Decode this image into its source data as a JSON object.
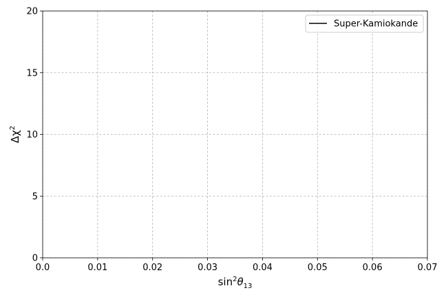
{
  "chart_data": {
    "type": "line",
    "xlabel": {
      "base": "sin",
      "sup": "2",
      "sym": "θ",
      "sub": "13"
    },
    "ylabel": {
      "base": "Δχ",
      "sup": "2"
    },
    "xlim": [
      0.0,
      0.07
    ],
    "ylim": [
      0,
      20
    ],
    "xticks": [
      "0.0",
      "0.01",
      "0.02",
      "0.03",
      "0.04",
      "0.05",
      "0.06",
      "0.07"
    ],
    "yticks": [
      "0",
      "5",
      "10",
      "15",
      "20"
    ],
    "xtick_values": [
      0.0,
      0.01,
      0.02,
      0.03,
      0.04,
      0.05,
      0.06,
      0.07
    ],
    "ytick_values": [
      0,
      5,
      10,
      15,
      20
    ],
    "grid": true,
    "legend_position": "top-right",
    "series": [
      {
        "name": "Super-Kamiokande",
        "color": "#000000",
        "x": [],
        "y": []
      }
    ]
  }
}
